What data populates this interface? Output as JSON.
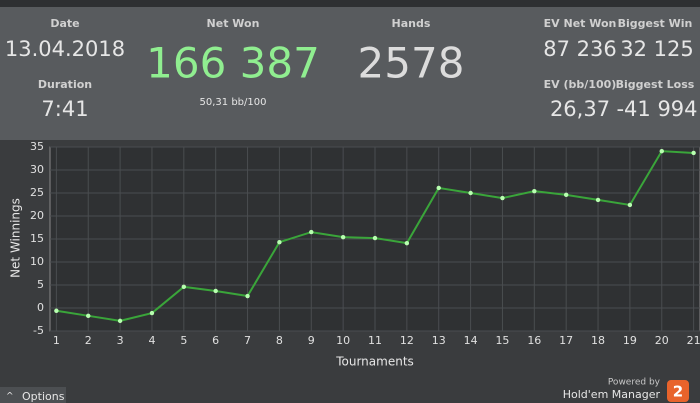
{
  "stats": {
    "date": {
      "label": "Date",
      "value": "13.04.2018"
    },
    "duration": {
      "label": "Duration",
      "value": "7:41"
    },
    "net_won": {
      "label": "Net Won",
      "value": "166 387",
      "sub": "50,31 bb/100"
    },
    "hands": {
      "label": "Hands",
      "value": "2578"
    },
    "ev_net_won": {
      "label": "EV Net Won",
      "value": "87 236"
    },
    "biggest_win": {
      "label": "Biggest Win",
      "value": "32 125"
    },
    "ev_bb": {
      "label": "EV (bb/100)",
      "value": "26,37"
    },
    "biggest_loss": {
      "label": "Biggest Loss",
      "value": "-41 994"
    }
  },
  "chart_data": {
    "type": "line",
    "x_label": "Tournaments",
    "y_label": "Net Winnings",
    "x": [
      1,
      2,
      3,
      4,
      5,
      6,
      7,
      8,
      9,
      10,
      11,
      12,
      13,
      14,
      15,
      16,
      17,
      18,
      19,
      20,
      21
    ],
    "series": [
      {
        "name": "Net Winnings",
        "color": "#3aa53a",
        "marker_color": "#b8ffb0",
        "values": [
          -0.6,
          -1.7,
          -2.8,
          -1.1,
          4.6,
          3.7,
          2.6,
          14.3,
          16.5,
          15.4,
          15.2,
          14.1,
          26.1,
          25,
          23.9,
          25.4,
          24.6,
          23.5,
          22.4,
          34.1,
          33.7
        ]
      }
    ],
    "xlim": [
      0.8,
      21.2
    ],
    "xticks": [
      1,
      2,
      3,
      4,
      5,
      6,
      7,
      8,
      9,
      10,
      11,
      12,
      13,
      14,
      15,
      16,
      17,
      18,
      19,
      20,
      21
    ],
    "ylim": [
      -5,
      35
    ],
    "yticks": [
      -5,
      0,
      5,
      10,
      15,
      20,
      25,
      30,
      35
    ],
    "grid": true
  },
  "footer": {
    "options": "Options",
    "powered_by": "Powered by",
    "brand": "Hold'em Manager",
    "logo": "2"
  }
}
